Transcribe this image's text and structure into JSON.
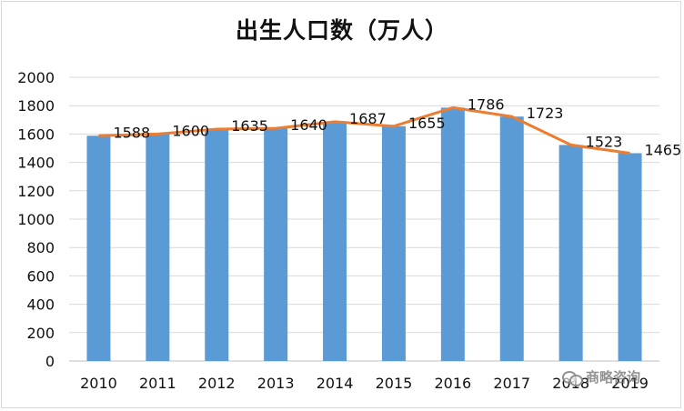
{
  "chart_data": {
    "type": "bar",
    "title": "出生人口数（万人）",
    "categories": [
      "2010",
      "2011",
      "2012",
      "2013",
      "2014",
      "2015",
      "2016",
      "2017",
      "2018",
      "2019"
    ],
    "values": [
      1588,
      1600,
      1635,
      1640,
      1687,
      1655,
      1786,
      1723,
      1523,
      1465
    ],
    "data_labels": [
      "1588",
      "1600",
      "1635",
      "1640",
      "1687",
      "1655",
      "1786",
      "1723",
      "1523",
      "1465"
    ],
    "overlay_line": {
      "type": "line",
      "values": [
        1588,
        1600,
        1635,
        1640,
        1687,
        1655,
        1786,
        1723,
        1523,
        1465
      ]
    },
    "ylim": [
      0,
      2000
    ],
    "yticks": [
      0,
      200,
      400,
      600,
      800,
      1000,
      1200,
      1400,
      1600,
      1800,
      2000
    ],
    "grid": true,
    "legend": "none",
    "colors": {
      "bar": "#5b9bd5",
      "line": "#ed7d31",
      "grid": "#d9d9d9",
      "text": "#111111"
    }
  },
  "watermark": {
    "text": "商略咨询",
    "icon": "chat-bubbles-icon"
  }
}
